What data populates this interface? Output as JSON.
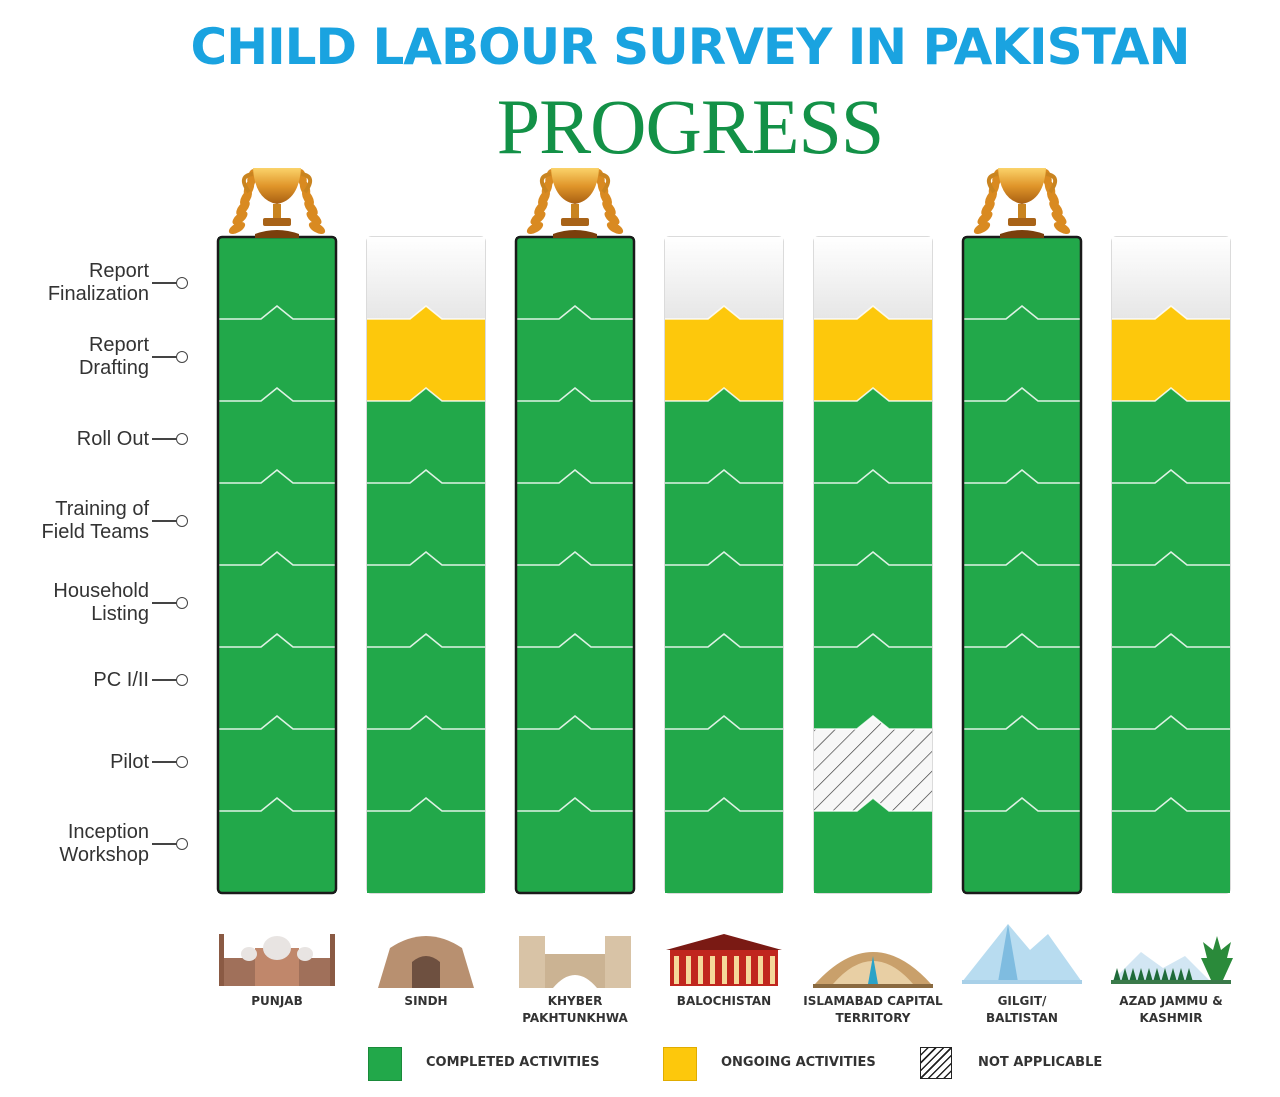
{
  "chart_data": {
    "type": "table",
    "title": "CHILD LABOUR SURVEY IN PAKISTAN",
    "subtitle": "PROGRESS",
    "stages": [
      "Report Finalization",
      "Report Drafting",
      "Roll Out",
      "Training of Field Teams",
      "Household Listing",
      "PC I/II",
      "Pilot",
      "Inception Workshop"
    ],
    "stage_lines": [
      [
        "Report",
        "Finalization"
      ],
      [
        "Report",
        "Drafting"
      ],
      [
        "Roll Out"
      ],
      [
        "Training of",
        "Field Teams"
      ],
      [
        "Household",
        "Listing"
      ],
      [
        "PC I/II"
      ],
      [
        "Pilot"
      ],
      [
        "Inception",
        "Workshop"
      ]
    ],
    "regions": [
      {
        "name": "PUNJAB",
        "name_lines": [
          "PUNJAB"
        ],
        "trophy": true,
        "status": [
          "completed",
          "completed",
          "completed",
          "completed",
          "completed",
          "completed",
          "completed",
          "completed"
        ]
      },
      {
        "name": "SINDH",
        "name_lines": [
          "SINDH"
        ],
        "trophy": false,
        "status": [
          "none",
          "ongoing",
          "completed",
          "completed",
          "completed",
          "completed",
          "completed",
          "completed"
        ]
      },
      {
        "name": "KHYBER PAKHTUNKHWA",
        "name_lines": [
          "KHYBER",
          "PAKHTUNKHWA"
        ],
        "trophy": true,
        "status": [
          "completed",
          "completed",
          "completed",
          "completed",
          "completed",
          "completed",
          "completed",
          "completed"
        ]
      },
      {
        "name": "BALOCHISTAN",
        "name_lines": [
          "BALOCHISTAN"
        ],
        "trophy": false,
        "status": [
          "none",
          "ongoing",
          "completed",
          "completed",
          "completed",
          "completed",
          "completed",
          "completed"
        ]
      },
      {
        "name": "ISLAMABAD CAPITAL TERRITORY",
        "name_lines": [
          "ISLAMABAD CAPITAL",
          "TERRITORY"
        ],
        "trophy": false,
        "status": [
          "none",
          "ongoing",
          "completed",
          "completed",
          "completed",
          "completed",
          "not_applicable",
          "completed"
        ]
      },
      {
        "name": "GILGIT/ BALTISTAN",
        "name_lines": [
          "GILGIT/",
          "BALTISTAN"
        ],
        "trophy": true,
        "status": [
          "completed",
          "completed",
          "completed",
          "completed",
          "completed",
          "completed",
          "completed",
          "completed"
        ]
      },
      {
        "name": "AZAD JAMMU & KASHMIR",
        "name_lines": [
          "AZAD JAMMU &",
          "KASHMIR"
        ],
        "trophy": false,
        "status": [
          "none",
          "ongoing",
          "completed",
          "completed",
          "completed",
          "completed",
          "completed",
          "completed"
        ]
      }
    ],
    "legend": [
      {
        "key": "completed",
        "label": "COMPLETED ACTIVITIES",
        "color": "#22a84a"
      },
      {
        "key": "ongoing",
        "label": "ONGOING ACTIVITIES",
        "color": "#fdc80c"
      },
      {
        "key": "not_applicable",
        "label": "NOT APPLICABLE",
        "color": "#ffffff"
      }
    ],
    "colors": {
      "completed": "#22a84a",
      "ongoing": "#fdc80c",
      "none": "#f2f2f2",
      "title": "#1aa3e0",
      "subtitle": "#139147"
    }
  }
}
